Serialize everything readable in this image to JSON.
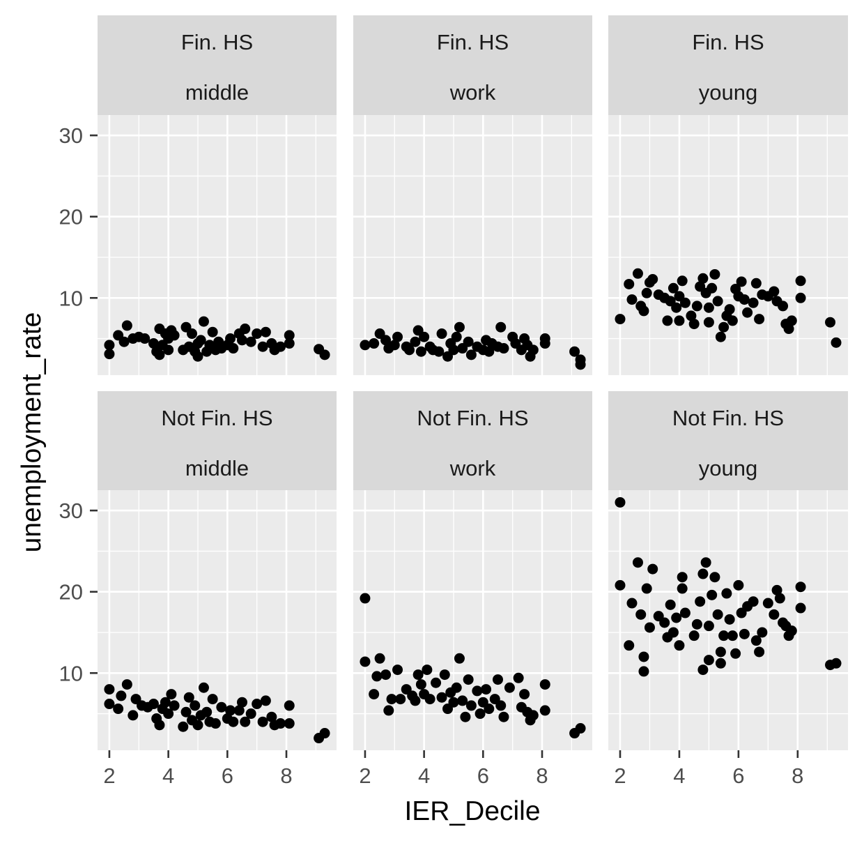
{
  "chart_data": {
    "type": "scatter",
    "xlabel": "IER_Decile",
    "ylabel": "unemployment_rate",
    "x_ticks": [
      "2",
      "4",
      "6",
      "8"
    ],
    "y_ticks": [
      "10",
      "20",
      "30"
    ],
    "xlim": [
      1.6,
      9.7
    ],
    "ylim": [
      0.5,
      32.5
    ],
    "grid": true,
    "legend": "none",
    "facet_rows": [
      "Fin. HS",
      "Not Fin. HS"
    ],
    "facet_cols": [
      "middle",
      "work",
      "young"
    ],
    "panels": [
      {
        "row": "Fin. HS",
        "col": "middle",
        "points": [
          [
            2.0,
            4.2
          ],
          [
            2.0,
            3.1
          ],
          [
            2.3,
            5.4
          ],
          [
            2.5,
            4.6
          ],
          [
            2.6,
            6.6
          ],
          [
            2.8,
            5.0
          ],
          [
            3.0,
            5.2
          ],
          [
            3.2,
            5.0
          ],
          [
            3.5,
            4.4
          ],
          [
            3.6,
            3.4
          ],
          [
            3.7,
            3.0
          ],
          [
            3.7,
            6.2
          ],
          [
            3.8,
            4.2
          ],
          [
            3.9,
            5.6
          ],
          [
            4.0,
            3.6
          ],
          [
            4.0,
            5.0
          ],
          [
            4.1,
            6.0
          ],
          [
            4.2,
            5.4
          ],
          [
            4.5,
            3.6
          ],
          [
            4.6,
            6.4
          ],
          [
            4.7,
            4.0
          ],
          [
            4.8,
            5.6
          ],
          [
            4.9,
            3.4
          ],
          [
            5.0,
            2.8
          ],
          [
            5.0,
            4.4
          ],
          [
            5.1,
            4.8
          ],
          [
            5.2,
            7.1
          ],
          [
            5.3,
            3.4
          ],
          [
            5.4,
            4.2
          ],
          [
            5.5,
            5.8
          ],
          [
            5.6,
            3.6
          ],
          [
            5.7,
            4.6
          ],
          [
            5.8,
            3.8
          ],
          [
            6.0,
            4.2
          ],
          [
            6.1,
            5.0
          ],
          [
            6.2,
            3.8
          ],
          [
            6.4,
            5.6
          ],
          [
            6.5,
            4.8
          ],
          [
            6.6,
            6.2
          ],
          [
            6.8,
            4.6
          ],
          [
            7.0,
            5.6
          ],
          [
            7.2,
            4.0
          ],
          [
            7.3,
            5.8
          ],
          [
            7.5,
            4.4
          ],
          [
            7.6,
            3.6
          ],
          [
            7.8,
            4.0
          ],
          [
            8.1,
            5.4
          ],
          [
            8.1,
            4.4
          ],
          [
            9.1,
            3.7
          ],
          [
            9.3,
            3.0
          ]
        ]
      },
      {
        "row": "Fin. HS",
        "col": "work",
        "points": [
          [
            2.0,
            4.2
          ],
          [
            2.3,
            4.4
          ],
          [
            2.5,
            5.6
          ],
          [
            2.7,
            4.8
          ],
          [
            2.8,
            3.8
          ],
          [
            3.0,
            4.2
          ],
          [
            3.1,
            5.2
          ],
          [
            3.4,
            4.0
          ],
          [
            3.5,
            3.6
          ],
          [
            3.7,
            4.6
          ],
          [
            3.8,
            6.0
          ],
          [
            3.9,
            3.4
          ],
          [
            4.0,
            5.2
          ],
          [
            4.2,
            4.0
          ],
          [
            4.3,
            3.6
          ],
          [
            4.5,
            3.4
          ],
          [
            4.6,
            5.6
          ],
          [
            4.8,
            2.8
          ],
          [
            4.9,
            4.4
          ],
          [
            5.0,
            3.6
          ],
          [
            5.1,
            5.2
          ],
          [
            5.2,
            6.4
          ],
          [
            5.3,
            3.8
          ],
          [
            5.5,
            4.6
          ],
          [
            5.6,
            3.0
          ],
          [
            5.8,
            4.0
          ],
          [
            6.0,
            3.6
          ],
          [
            6.1,
            4.8
          ],
          [
            6.2,
            3.4
          ],
          [
            6.3,
            4.4
          ],
          [
            6.5,
            4.0
          ],
          [
            6.6,
            6.4
          ],
          [
            6.7,
            3.8
          ],
          [
            7.0,
            5.2
          ],
          [
            7.1,
            4.4
          ],
          [
            7.3,
            3.6
          ],
          [
            7.4,
            5.0
          ],
          [
            7.5,
            4.2
          ],
          [
            7.6,
            2.8
          ],
          [
            7.7,
            3.6
          ],
          [
            8.1,
            5.0
          ],
          [
            8.1,
            4.4
          ],
          [
            9.1,
            3.4
          ],
          [
            9.3,
            2.4
          ],
          [
            9.3,
            1.8
          ]
        ]
      },
      {
        "row": "Fin. HS",
        "col": "young",
        "points": [
          [
            2.0,
            7.4
          ],
          [
            2.3,
            11.7
          ],
          [
            2.4,
            9.8
          ],
          [
            2.6,
            13.0
          ],
          [
            2.7,
            9.0
          ],
          [
            2.8,
            8.4
          ],
          [
            2.9,
            10.6
          ],
          [
            3.0,
            11.9
          ],
          [
            3.1,
            12.3
          ],
          [
            3.3,
            10.4
          ],
          [
            3.5,
            10.0
          ],
          [
            3.6,
            7.2
          ],
          [
            3.7,
            9.6
          ],
          [
            3.8,
            11.2
          ],
          [
            3.9,
            8.8
          ],
          [
            4.0,
            7.2
          ],
          [
            4.0,
            10.2
          ],
          [
            4.1,
            12.1
          ],
          [
            4.2,
            9.4
          ],
          [
            4.4,
            7.8
          ],
          [
            4.5,
            6.8
          ],
          [
            4.6,
            9.0
          ],
          [
            4.7,
            11.4
          ],
          [
            4.8,
            12.4
          ],
          [
            4.9,
            10.6
          ],
          [
            5.0,
            8.8
          ],
          [
            5.0,
            7.0
          ],
          [
            5.1,
            11.2
          ],
          [
            5.2,
            12.9
          ],
          [
            5.3,
            9.6
          ],
          [
            5.4,
            5.2
          ],
          [
            5.5,
            6.4
          ],
          [
            5.6,
            7.8
          ],
          [
            5.7,
            8.6
          ],
          [
            5.8,
            7.2
          ],
          [
            5.9,
            11.1
          ],
          [
            6.0,
            10.2
          ],
          [
            6.1,
            12.0
          ],
          [
            6.2,
            9.8
          ],
          [
            6.3,
            8.2
          ],
          [
            6.5,
            9.4
          ],
          [
            6.6,
            11.8
          ],
          [
            6.7,
            7.4
          ],
          [
            6.8,
            10.4
          ],
          [
            7.0,
            10.2
          ],
          [
            7.2,
            10.8
          ],
          [
            7.3,
            9.6
          ],
          [
            7.5,
            9.0
          ],
          [
            7.6,
            6.8
          ],
          [
            7.7,
            6.2
          ],
          [
            7.8,
            7.2
          ],
          [
            8.1,
            12.1
          ],
          [
            8.1,
            10.0
          ],
          [
            9.1,
            7.0
          ],
          [
            9.3,
            4.5
          ]
        ]
      },
      {
        "row": "Not Fin. HS",
        "col": "middle",
        "points": [
          [
            2.0,
            8.0
          ],
          [
            2.0,
            6.2
          ],
          [
            2.3,
            5.6
          ],
          [
            2.4,
            7.2
          ],
          [
            2.6,
            8.6
          ],
          [
            2.8,
            4.8
          ],
          [
            2.9,
            6.8
          ],
          [
            3.1,
            6.0
          ],
          [
            3.3,
            5.8
          ],
          [
            3.5,
            6.2
          ],
          [
            3.6,
            4.4
          ],
          [
            3.7,
            3.6
          ],
          [
            3.8,
            5.6
          ],
          [
            3.9,
            6.4
          ],
          [
            4.0,
            5.0
          ],
          [
            4.1,
            7.4
          ],
          [
            4.2,
            6.0
          ],
          [
            4.5,
            3.4
          ],
          [
            4.6,
            5.2
          ],
          [
            4.7,
            7.0
          ],
          [
            4.8,
            4.2
          ],
          [
            4.9,
            6.0
          ],
          [
            5.0,
            3.6
          ],
          [
            5.1,
            4.8
          ],
          [
            5.2,
            8.2
          ],
          [
            5.3,
            5.2
          ],
          [
            5.4,
            4.0
          ],
          [
            5.5,
            6.8
          ],
          [
            5.6,
            3.8
          ],
          [
            5.8,
            5.8
          ],
          [
            6.0,
            4.4
          ],
          [
            6.1,
            5.4
          ],
          [
            6.2,
            4.0
          ],
          [
            6.4,
            5.4
          ],
          [
            6.5,
            6.4
          ],
          [
            6.6,
            4.0
          ],
          [
            6.8,
            5.0
          ],
          [
            7.0,
            6.2
          ],
          [
            7.2,
            4.0
          ],
          [
            7.3,
            6.6
          ],
          [
            7.5,
            4.6
          ],
          [
            7.6,
            3.6
          ],
          [
            7.8,
            3.8
          ],
          [
            8.1,
            6.0
          ],
          [
            8.1,
            3.8
          ],
          [
            9.1,
            2.0
          ],
          [
            9.3,
            2.6
          ]
        ]
      },
      {
        "row": "Not Fin. HS",
        "col": "work",
        "points": [
          [
            2.0,
            19.2
          ],
          [
            2.0,
            11.4
          ],
          [
            2.3,
            7.4
          ],
          [
            2.4,
            9.6
          ],
          [
            2.5,
            11.8
          ],
          [
            2.7,
            9.8
          ],
          [
            2.8,
            5.4
          ],
          [
            2.9,
            6.8
          ],
          [
            3.1,
            10.4
          ],
          [
            3.2,
            6.8
          ],
          [
            3.4,
            8.0
          ],
          [
            3.6,
            7.2
          ],
          [
            3.7,
            6.6
          ],
          [
            3.8,
            9.8
          ],
          [
            3.9,
            8.6
          ],
          [
            4.0,
            7.4
          ],
          [
            4.1,
            10.4
          ],
          [
            4.2,
            6.8
          ],
          [
            4.4,
            8.8
          ],
          [
            4.6,
            7.0
          ],
          [
            4.7,
            9.8
          ],
          [
            4.8,
            5.6
          ],
          [
            4.9,
            7.6
          ],
          [
            5.0,
            6.4
          ],
          [
            5.1,
            8.2
          ],
          [
            5.2,
            11.8
          ],
          [
            5.3,
            6.6
          ],
          [
            5.4,
            4.6
          ],
          [
            5.5,
            9.2
          ],
          [
            5.6,
            6.0
          ],
          [
            5.8,
            7.8
          ],
          [
            5.9,
            5.0
          ],
          [
            6.0,
            6.4
          ],
          [
            6.1,
            8.0
          ],
          [
            6.2,
            5.6
          ],
          [
            6.4,
            6.8
          ],
          [
            6.5,
            9.2
          ],
          [
            6.6,
            6.0
          ],
          [
            6.7,
            4.6
          ],
          [
            6.9,
            8.2
          ],
          [
            7.2,
            9.4
          ],
          [
            7.3,
            5.8
          ],
          [
            7.4,
            7.4
          ],
          [
            7.5,
            5.2
          ],
          [
            7.6,
            4.2
          ],
          [
            7.7,
            4.8
          ],
          [
            8.1,
            8.6
          ],
          [
            8.1,
            5.4
          ],
          [
            9.1,
            2.6
          ],
          [
            9.3,
            3.2
          ]
        ]
      },
      {
        "row": "Not Fin. HS",
        "col": "young",
        "points": [
          [
            2.0,
            31.0
          ],
          [
            2.0,
            20.8
          ],
          [
            2.3,
            13.4
          ],
          [
            2.4,
            18.6
          ],
          [
            2.6,
            23.6
          ],
          [
            2.7,
            17.2
          ],
          [
            2.8,
            10.2
          ],
          [
            2.8,
            12.0
          ],
          [
            2.9,
            20.4
          ],
          [
            3.0,
            15.6
          ],
          [
            3.1,
            22.8
          ],
          [
            3.3,
            17.0
          ],
          [
            3.5,
            16.2
          ],
          [
            3.6,
            14.4
          ],
          [
            3.7,
            18.4
          ],
          [
            3.8,
            15.0
          ],
          [
            3.9,
            16.8
          ],
          [
            4.0,
            13.4
          ],
          [
            4.1,
            21.8
          ],
          [
            4.1,
            20.4
          ],
          [
            4.2,
            17.4
          ],
          [
            4.5,
            14.6
          ],
          [
            4.6,
            16.0
          ],
          [
            4.7,
            18.8
          ],
          [
            4.8,
            10.4
          ],
          [
            4.8,
            22.2
          ],
          [
            4.9,
            23.6
          ],
          [
            5.0,
            11.6
          ],
          [
            5.0,
            15.8
          ],
          [
            5.1,
            19.6
          ],
          [
            5.2,
            21.8
          ],
          [
            5.3,
            17.2
          ],
          [
            5.4,
            11.2
          ],
          [
            5.4,
            12.6
          ],
          [
            5.5,
            14.6
          ],
          [
            5.6,
            19.8
          ],
          [
            5.7,
            16.6
          ],
          [
            5.8,
            14.6
          ],
          [
            5.9,
            12.4
          ],
          [
            6.0,
            20.8
          ],
          [
            6.1,
            17.4
          ],
          [
            6.2,
            14.8
          ],
          [
            6.3,
            18.2
          ],
          [
            6.5,
            18.8
          ],
          [
            6.6,
            14.0
          ],
          [
            6.7,
            12.6
          ],
          [
            6.8,
            15.0
          ],
          [
            7.0,
            18.6
          ],
          [
            7.2,
            17.2
          ],
          [
            7.3,
            20.2
          ],
          [
            7.4,
            19.2
          ],
          [
            7.5,
            16.2
          ],
          [
            7.6,
            15.8
          ],
          [
            7.7,
            14.6
          ],
          [
            7.8,
            15.2
          ],
          [
            8.1,
            20.6
          ],
          [
            8.1,
            18.0
          ],
          [
            9.1,
            11.0
          ],
          [
            9.3,
            11.2
          ]
        ]
      }
    ]
  }
}
